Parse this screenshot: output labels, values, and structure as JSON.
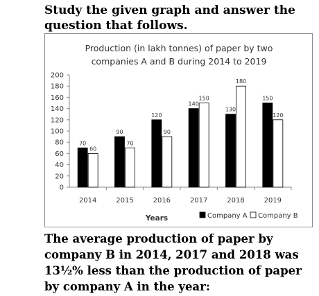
{
  "question_intro": "Study the given graph and answer the question that follows.",
  "question_text": "The average production of paper by company B in 2014, 2017 and 2018 was 13½% less than the production of paper by company A in the year:",
  "colors": {
    "company_a": "#000000",
    "company_b": "#ffffff",
    "bar_stroke": "#000000",
    "axis": "#888888"
  },
  "chart_data": {
    "type": "bar",
    "title_lines": [
      "Production (in lakh tonnes) of paper by two",
      "companies A and B during 2014 to 2019"
    ],
    "categories": [
      "2014",
      "2015",
      "2016",
      "2017",
      "2018",
      "2019"
    ],
    "series": [
      {
        "name": "Company A",
        "values": [
          70,
          90,
          120,
          140,
          130,
          150
        ]
      },
      {
        "name": "Company B",
        "values": [
          60,
          70,
          90,
          150,
          180,
          120
        ]
      }
    ],
    "xlabel": "Years",
    "ylabel": "",
    "ylim": [
      0,
      200
    ],
    "yticks": [
      0,
      20,
      40,
      60,
      80,
      100,
      120,
      140,
      160,
      180,
      200
    ],
    "legend_position": "bottom-right",
    "grid": false,
    "data_labels": true
  }
}
